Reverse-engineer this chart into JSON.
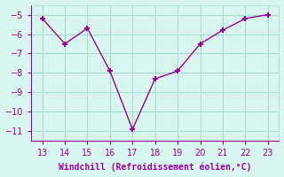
{
  "x": [
    13,
    14,
    15,
    16,
    17,
    18,
    19,
    20,
    21,
    22,
    23
  ],
  "y": [
    -5.2,
    -6.5,
    -5.7,
    -7.9,
    -10.9,
    -8.3,
    -7.9,
    -6.5,
    -5.8,
    -5.2,
    -5.0
  ],
  "line_color": "#990099",
  "marker": "+",
  "marker_size": 5,
  "marker_lw": 1.5,
  "line_width": 1.0,
  "bg_color": "#d8f5f0",
  "grid_color": "#aaddcc",
  "xlabel": "Windchill (Refroidissement éolien,°C)",
  "xlabel_color": "#990099",
  "tick_color": "#990099",
  "spine_color": "#990099",
  "xlim": [
    12.5,
    23.5
  ],
  "ylim": [
    -11.5,
    -4.5
  ],
  "yticks": [
    -5,
    -6,
    -7,
    -8,
    -9,
    -10,
    -11
  ],
  "xticks": [
    13,
    14,
    15,
    16,
    17,
    18,
    19,
    20,
    21,
    22,
    23
  ],
  "xlabel_fontsize": 7,
  "tick_fontsize": 7
}
